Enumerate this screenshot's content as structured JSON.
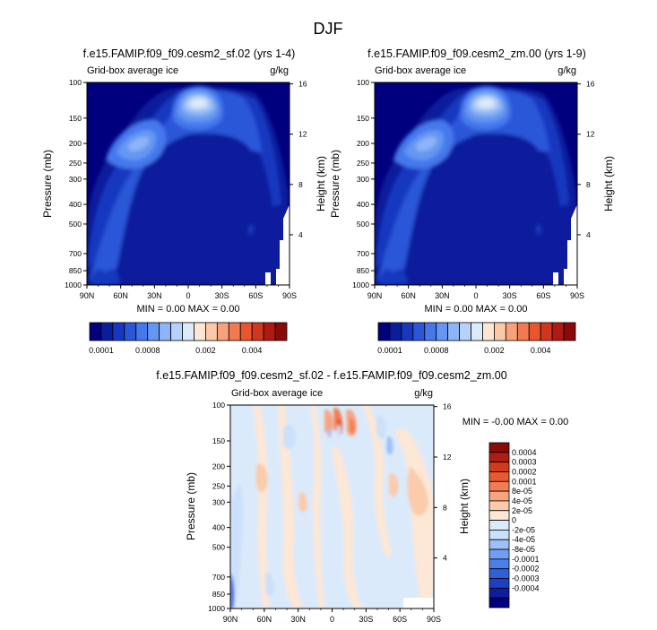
{
  "figure": {
    "title": "DJF"
  },
  "chart_data": [
    {
      "type": "heatmap",
      "title": "f.e15.FAMIP.f09_f09.cesm2_sf.02 (yrs 1-4)",
      "subtitle_left": "Grid-box average ice",
      "units": "g/kg",
      "xlabel": "",
      "ylabel": "Pressure (mb)",
      "y2label": "Height (km)",
      "xticks": [
        "90N",
        "60N",
        "30N",
        "0",
        "30S",
        "60S",
        "90S"
      ],
      "yticks": [
        100,
        150,
        200,
        250,
        300,
        400,
        500,
        700,
        850,
        1000
      ],
      "y2ticks": [
        16,
        12,
        8,
        4
      ],
      "minmax": "MIN =   0.00  MAX =   0.00"
    },
    {
      "type": "heatmap",
      "title": "f.e15.FAMIP.f09_f09.cesm2_zm.00 (yrs 1-9)",
      "subtitle_left": "Grid-box average ice",
      "units": "g/kg",
      "xlabel": "",
      "ylabel": "Pressure (mb)",
      "y2label": "Height (km)",
      "xticks": [
        "90N",
        "60N",
        "30N",
        "0",
        "30S",
        "60S",
        "90S"
      ],
      "yticks": [
        100,
        150,
        200,
        250,
        300,
        400,
        500,
        700,
        850,
        1000
      ],
      "y2ticks": [
        16,
        12,
        8,
        4
      ],
      "minmax": "MIN =   0.00  MAX =   0.00"
    },
    {
      "type": "heatmap",
      "title": "f.e15.FAMIP.f09_f09.cesm2_sf.02 - f.e15.FAMIP.f09_f09.cesm2_zm.00",
      "subtitle_left": "Grid-box average ice",
      "units": "g/kg",
      "xlabel": "",
      "ylabel": "Pressure (mb)",
      "y2label": "Height (km)",
      "xticks": [
        "90N",
        "60N",
        "30N",
        "0",
        "30S",
        "60S",
        "90S"
      ],
      "yticks": [
        100,
        150,
        200,
        250,
        300,
        400,
        500,
        700,
        850,
        1000
      ],
      "y2ticks": [
        16,
        12,
        8,
        4
      ],
      "minmax": "MIN =  -0.00  MAX =   0.00"
    }
  ],
  "colorbar_top": {
    "colors": [
      "#00007f",
      "#0a1e9c",
      "#1838c0",
      "#2c56d8",
      "#4478ec",
      "#6596f2",
      "#8db4f6",
      "#b6d2f8",
      "#dcebfa",
      "#fde6d4",
      "#fbc9a8",
      "#f8a27c",
      "#f27a50",
      "#e9562e",
      "#d2361c",
      "#b01a10",
      "#8a0a08"
    ],
    "labels": [
      "0.0001",
      "0.0008",
      "0.002",
      "0.004"
    ]
  },
  "colorbar_diff": {
    "colors": [
      "#00007f",
      "#0d1f9f",
      "#1c3fc6",
      "#2e5fdf",
      "#4a80ee",
      "#6e9ff4",
      "#9dc0f7",
      "#cbe0fa",
      "#dbeafb",
      "#fde7d5",
      "#fbcbab",
      "#f8a47f",
      "#f27d53",
      "#e85a31",
      "#d23a1e",
      "#b01d12",
      "#8a0a08"
    ],
    "labels": [
      "0.0004",
      "0.0003",
      "0.0002",
      "0.0001",
      "8e-05",
      "4e-05",
      "2e-05",
      "0",
      "-2e-05",
      "-4e-05",
      "-8e-05",
      "-0.0001",
      "-0.0002",
      "-0.0003",
      "-0.0004"
    ]
  }
}
